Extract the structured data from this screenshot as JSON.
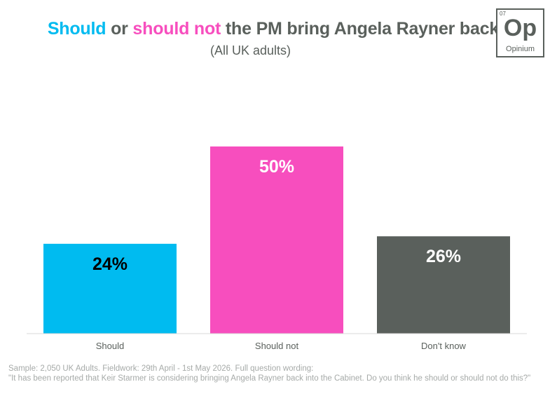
{
  "title": {
    "part1": "Should",
    "part2": " or ",
    "part3": "should not",
    "part4": " the PM bring Angela Rayner back?"
  },
  "subtitle": "(All UK adults)",
  "logo": {
    "number": "07",
    "symbol": "Op",
    "name": "Opinium"
  },
  "colors": {
    "should": "#00bbf0",
    "should_not": "#f74ebe",
    "dont_know": "#5a605c",
    "axis": "#d9d9d9",
    "text": "#5a605c"
  },
  "chart_data": {
    "type": "bar",
    "title": "Should or should not the PM bring Angela Rayner back?",
    "subtitle": "(All UK adults)",
    "categories": [
      "Should",
      "Should not",
      "Don't know"
    ],
    "values": [
      24,
      50,
      26
    ],
    "value_labels": [
      "24%",
      "50%",
      "26%"
    ],
    "bar_colors": [
      "#00bbf0",
      "#f74ebe",
      "#5a605c"
    ],
    "label_colors": [
      "#000000",
      "#ffffff",
      "#ffffff"
    ],
    "ylim": [
      0,
      50
    ],
    "grid": false,
    "legend": "none",
    "xlabel": "",
    "ylabel": ""
  },
  "footnote": {
    "line1": "Sample: 2,050 UK Adults. Fieldwork: 29th April - 1st May 2026. Full question wording:",
    "line2": "\"It has been reported that Keir Starmer is considering bringing Angela Rayner back into the Cabinet. Do you think he should or should not do this?\""
  }
}
